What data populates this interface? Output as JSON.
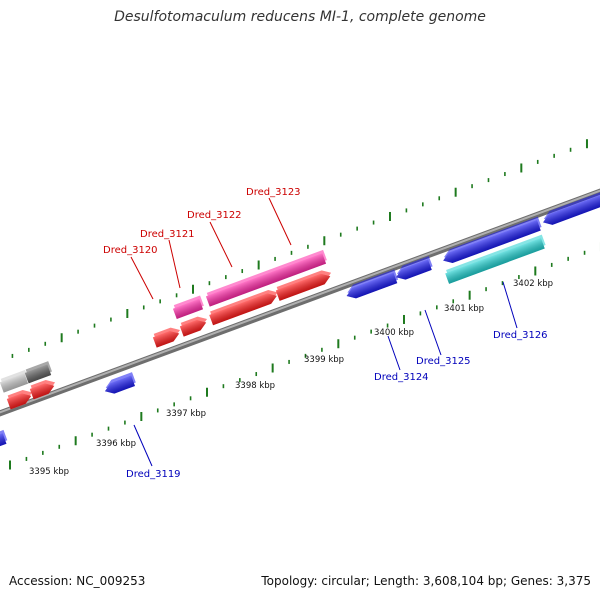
{
  "title": "Desulfotomaculum reducens MI-1, complete genome",
  "footer": {
    "accession": "Accession: NC_009253",
    "summary": "Topology: circular; Length: 3,608,104 bp; Genes: 3,375"
  },
  "colors": {
    "backbone": "#8a8a8a",
    "tick": "#1e7a1e",
    "forward_label": "#cc0000",
    "reverse_label": "#0000bb",
    "cds_red": "#ff1a1a",
    "cds_magenta": "#ff2aa8",
    "cds_blue": "#1a1aee",
    "cds_cyan": "#22d0d0",
    "cds_gray_light": "#c8c8c8",
    "cds_gray_dark": "#606060"
  },
  "kbp_labels": [
    "3395 kbp",
    "3396 kbp",
    "3397 kbp",
    "3398 kbp",
    "3399 kbp",
    "3400 kbp",
    "3401 kbp",
    "3402 kbp"
  ],
  "gene_labels_forward": [
    "Dred_3120",
    "Dred_3121",
    "Dred_3122",
    "Dred_3123"
  ],
  "gene_labels_reverse": [
    "Dred_3119",
    "Dred_3124",
    "Dred_3125",
    "Dred_3126"
  ]
}
